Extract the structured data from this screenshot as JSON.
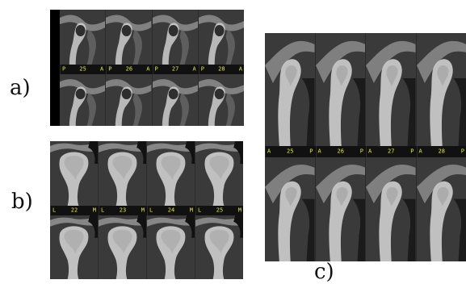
{
  "figure": {
    "labels": {
      "a": "a)",
      "b": "b)",
      "c": "c)"
    }
  },
  "panel_a": {
    "labels": [
      {
        "left": "P",
        "mid": "25",
        "right": "A"
      },
      {
        "left": "P",
        "mid": "26",
        "right": "A"
      },
      {
        "left": "P",
        "mid": "27",
        "right": "A"
      },
      {
        "left": "P",
        "mid": "28",
        "right": "A"
      }
    ]
  },
  "panel_b": {
    "labels": [
      {
        "left": "L",
        "mid": "22",
        "right": "M"
      },
      {
        "left": "L",
        "mid": "23",
        "right": "M"
      },
      {
        "left": "L",
        "mid": "24",
        "right": "M"
      },
      {
        "left": "L",
        "mid": "25",
        "right": "M"
      }
    ]
  },
  "panel_c": {
    "labels": [
      {
        "left": "A",
        "mid": "25",
        "right": "P"
      },
      {
        "left": "A",
        "mid": "26",
        "right": "P"
      },
      {
        "left": "A",
        "mid": "27",
        "right": "P"
      },
      {
        "left": "A",
        "mid": "28",
        "right": "P"
      }
    ]
  },
  "colors": {
    "label_text": "#e6e44a",
    "scan_background": "#3a3a3a",
    "bone": "#cfcfcf"
  }
}
